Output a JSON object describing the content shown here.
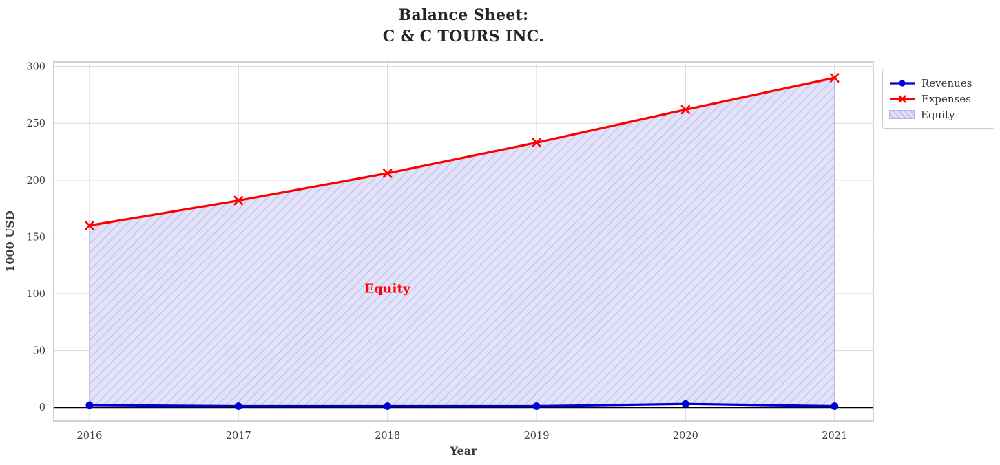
{
  "title": "Balance Sheet:\nC & C TOURS INC.",
  "chart_data": {
    "type": "line",
    "title": "Balance Sheet: C & C TOURS INC.",
    "xlabel": "Year",
    "ylabel": "1000 USD",
    "x": [
      2016,
      2017,
      2018,
      2019,
      2020,
      2021
    ],
    "series": [
      {
        "name": "Revenues",
        "values": [
          2,
          1,
          1,
          1,
          3,
          1
        ],
        "color": "#0000d8",
        "marker": "circle"
      },
      {
        "name": "Expenses",
        "values": [
          160,
          182,
          206,
          233,
          262,
          290
        ],
        "color": "#ff0000",
        "marker": "x"
      }
    ],
    "area": {
      "name": "Equity",
      "between": [
        "Revenues",
        "Expenses"
      ],
      "fill": "#e2e2f8",
      "hatch_color": "#c9c9f0",
      "edge_color": "#b2b2e8",
      "hatch": "//"
    },
    "annotation": {
      "text": "Equity",
      "x": 2018,
      "y": 104,
      "color": "#ff0000"
    },
    "yticks": [
      0,
      50,
      100,
      150,
      200,
      250,
      300
    ],
    "xlim": [
      2015.76,
      2021.26
    ],
    "ylim": [
      -12,
      304
    ],
    "zero_line": 0,
    "grid": true,
    "grid_color": "#dbdbdb",
    "spine_color": "#c6c6c6",
    "legend_position": "outside-top-right",
    "legend_items": [
      "Revenues",
      "Expenses",
      "Equity"
    ]
  }
}
